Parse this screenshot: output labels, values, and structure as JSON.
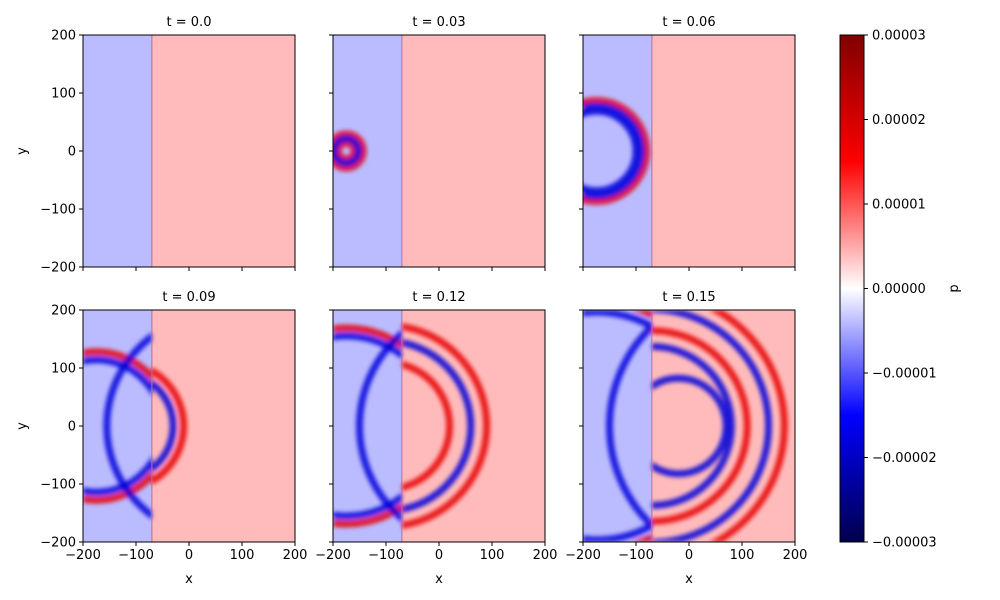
{
  "chart_data": {
    "type": "heatmap",
    "panels": [
      {
        "title": "t = 0.0",
        "t": 0.0,
        "wavefronts": []
      },
      {
        "title": "t = 0.03",
        "t": 0.03,
        "wavefronts": [
          {
            "cx": -175,
            "cy": 0,
            "r": 15,
            "sign": 1
          },
          {
            "cx": -175,
            "cy": 0,
            "r": 32,
            "sign": 1
          },
          {
            "cx": -175,
            "cy": 0,
            "r": 23,
            "sign": -1
          }
        ]
      },
      {
        "title": "t = 0.06",
        "t": 0.06,
        "wavefronts": [
          {
            "cx": -175,
            "cy": 0,
            "r": 95,
            "sign": 1
          },
          {
            "cx": -175,
            "cy": 0,
            "r": 75,
            "sign": -1
          },
          {
            "cx": -175,
            "cy": 0,
            "r": 85,
            "sign": -1,
            "clip": "left"
          }
        ]
      },
      {
        "title": "t = 0.09",
        "t": 0.09,
        "wavefronts": [
          {
            "cx": -175,
            "cy": 0,
            "r": 140,
            "sign": 1,
            "clip": "left"
          },
          {
            "cx": -175,
            "cy": 0,
            "r": 125,
            "sign": -1,
            "clip": "left"
          },
          {
            "cx": -130,
            "cy": 0,
            "r": 120,
            "sign": 1,
            "clip": "right"
          },
          {
            "cx": -130,
            "cy": 0,
            "r": 100,
            "sign": -1,
            "clip": "right"
          },
          {
            "cx": 55,
            "cy": 0,
            "r": 210,
            "sign": -1,
            "clip": "left"
          }
        ]
      },
      {
        "title": "t = 0.12",
        "t": 0.12,
        "wavefronts": [
          {
            "cx": -175,
            "cy": 0,
            "r": 185,
            "sign": 1,
            "clip": "left"
          },
          {
            "cx": -175,
            "cy": 0,
            "r": 170,
            "sign": -1,
            "clip": "left"
          },
          {
            "cx": -100,
            "cy": 0,
            "r": 190,
            "sign": 1,
            "clip": "right"
          },
          {
            "cx": -100,
            "cy": 0,
            "r": 160,
            "sign": -1,
            "clip": "right"
          },
          {
            "cx": -100,
            "cy": 0,
            "r": 120,
            "sign": 1,
            "clip": "right"
          },
          {
            "cx": 80,
            "cy": 0,
            "r": 230,
            "sign": -1,
            "clip": "left"
          }
        ]
      },
      {
        "title": "t = 0.15",
        "t": 0.15,
        "wavefronts": [
          {
            "cx": -175,
            "cy": 0,
            "r": 235,
            "sign": 1,
            "clip": "left"
          },
          {
            "cx": -175,
            "cy": 0,
            "r": 215,
            "sign": -1,
            "clip": "left"
          },
          {
            "cx": -70,
            "cy": 0,
            "r": 250,
            "sign": 1,
            "clip": "right"
          },
          {
            "cx": -70,
            "cy": 0,
            "r": 220,
            "sign": -1,
            "clip": "right"
          },
          {
            "cx": -70,
            "cy": 0,
            "r": 180,
            "sign": 1,
            "clip": "right"
          },
          {
            "cx": -70,
            "cy": 0,
            "r": 150,
            "sign": -1,
            "clip": "right"
          },
          {
            "cx": -20,
            "cy": 0,
            "r": 90,
            "sign": -1,
            "clip": "right"
          },
          {
            "cx": 110,
            "cy": 0,
            "r": 260,
            "sign": -1,
            "clip": "left"
          }
        ]
      }
    ],
    "interface_x": -70,
    "background": {
      "left_medium": -4e-06,
      "right_medium": 4e-06
    },
    "xlabel": "x",
    "ylabel": "y",
    "xlim": [
      -200,
      200
    ],
    "ylim": [
      -200,
      200
    ],
    "xticks": [
      -200,
      -100,
      0,
      100,
      200
    ],
    "yticks": [
      -200,
      -100,
      0,
      100,
      200
    ],
    "xtick_labels": [
      "−200",
      "−100",
      "0",
      "100",
      "200"
    ],
    "ytick_labels": [
      "−200",
      "−100",
      "0",
      "100",
      "200"
    ],
    "colormap": "seismic",
    "colormap_stops": [
      "#00004c",
      "#0000ff",
      "#ffffff",
      "#ff0000",
      "#800000"
    ],
    "colorbar": {
      "label": "p",
      "vmin": -3e-05,
      "vmax": 3e-05,
      "ticks": [
        -3e-05,
        -2e-05,
        -1e-05,
        0,
        1e-05,
        2e-05,
        3e-05
      ],
      "tick_labels": [
        "−0.00003",
        "−0.00002",
        "−0.00001",
        "0.00000",
        "0.00001",
        "0.00002",
        "0.00003"
      ]
    },
    "grid": false,
    "legend": "none"
  }
}
